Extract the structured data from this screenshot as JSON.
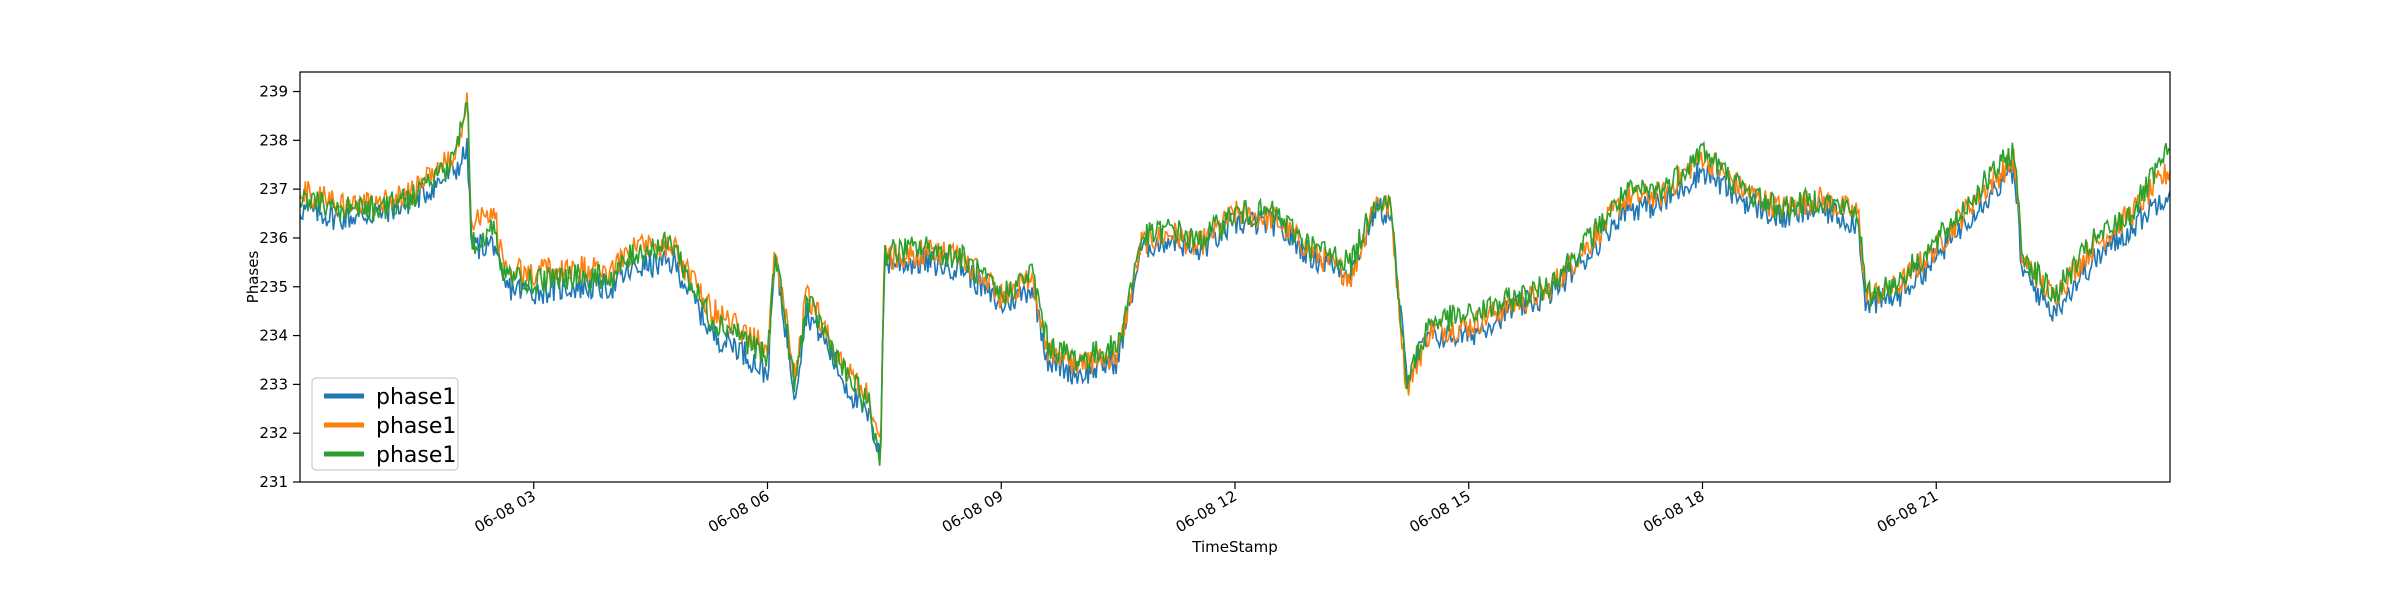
{
  "chart_data": {
    "type": "line",
    "xlabel": "TimeStamp",
    "ylabel": "Phases",
    "ylim": [
      231,
      239.4
    ],
    "yticks": [
      231,
      232,
      233,
      234,
      235,
      236,
      237,
      238,
      239
    ],
    "xlim_hours": [
      0,
      24
    ],
    "xticks": [
      {
        "hour": 3,
        "label": "06-08 03"
      },
      {
        "hour": 6,
        "label": "06-08 06"
      },
      {
        "hour": 9,
        "label": "06-08 09"
      },
      {
        "hour": 12,
        "label": "06-08 12"
      },
      {
        "hour": 15,
        "label": "06-08 15"
      },
      {
        "hour": 18,
        "label": "06-08 18"
      },
      {
        "hour": 21,
        "label": "06-08 21"
      }
    ],
    "grid": false,
    "legend_position": "lower-left",
    "series": [
      {
        "name": "phase1",
        "color": "#1f77b4",
        "points": [
          [
            0,
            236.6
          ],
          [
            0.5,
            236.4
          ],
          [
            1.0,
            236.5
          ],
          [
            1.5,
            236.8
          ],
          [
            2.0,
            237.4
          ],
          [
            2.15,
            237.8
          ],
          [
            2.2,
            235.8
          ],
          [
            2.5,
            235.9
          ],
          [
            2.6,
            235.0
          ],
          [
            3.0,
            234.9
          ],
          [
            3.5,
            235.0
          ],
          [
            4.0,
            235.0
          ],
          [
            4.3,
            235.4
          ],
          [
            4.8,
            235.5
          ],
          [
            5.0,
            234.9
          ],
          [
            5.3,
            234.0
          ],
          [
            5.6,
            233.8
          ],
          [
            6.0,
            233.2
          ],
          [
            6.1,
            235.6
          ],
          [
            6.35,
            232.8
          ],
          [
            6.5,
            234.5
          ],
          [
            6.7,
            234.0
          ],
          [
            7.0,
            233.0
          ],
          [
            7.3,
            232.3
          ],
          [
            7.45,
            231.6
          ],
          [
            7.5,
            235.5
          ],
          [
            8.0,
            235.5
          ],
          [
            8.5,
            235.4
          ],
          [
            9.0,
            234.6
          ],
          [
            9.4,
            235.0
          ],
          [
            9.6,
            233.5
          ],
          [
            10.0,
            233.2
          ],
          [
            10.5,
            233.5
          ],
          [
            10.8,
            235.8
          ],
          [
            11.2,
            236.0
          ],
          [
            11.5,
            235.7
          ],
          [
            12.0,
            236.3
          ],
          [
            12.5,
            236.3
          ],
          [
            13.0,
            235.6
          ],
          [
            13.5,
            235.3
          ],
          [
            13.8,
            236.6
          ],
          [
            14.0,
            236.5
          ],
          [
            14.2,
            233.2
          ],
          [
            14.5,
            234.0
          ],
          [
            15.0,
            234.0
          ],
          [
            15.5,
            234.5
          ],
          [
            16.0,
            234.8
          ],
          [
            16.5,
            235.6
          ],
          [
            17.0,
            236.6
          ],
          [
            17.5,
            236.7
          ],
          [
            18.0,
            237.4
          ],
          [
            18.5,
            236.8
          ],
          [
            19.0,
            236.4
          ],
          [
            19.5,
            236.6
          ],
          [
            20.0,
            236.3
          ],
          [
            20.1,
            234.6
          ],
          [
            20.5,
            234.8
          ],
          [
            21.0,
            235.6
          ],
          [
            21.5,
            236.6
          ],
          [
            22.0,
            237.4
          ],
          [
            22.1,
            235.3
          ],
          [
            22.5,
            234.5
          ],
          [
            23.0,
            235.5
          ],
          [
            23.5,
            236.2
          ],
          [
            24.0,
            237.0
          ]
        ]
      },
      {
        "name": "phase1",
        "color": "#ff7f0e",
        "points": [
          [
            0,
            237.0
          ],
          [
            0.5,
            236.7
          ],
          [
            1.0,
            236.7
          ],
          [
            1.5,
            237.0
          ],
          [
            2.0,
            237.7
          ],
          [
            2.15,
            238.8
          ],
          [
            2.2,
            236.3
          ],
          [
            2.5,
            236.6
          ],
          [
            2.6,
            235.4
          ],
          [
            3.0,
            235.3
          ],
          [
            3.5,
            235.4
          ],
          [
            4.0,
            235.3
          ],
          [
            4.3,
            235.8
          ],
          [
            4.8,
            235.8
          ],
          [
            5.0,
            235.2
          ],
          [
            5.3,
            234.5
          ],
          [
            5.6,
            234.2
          ],
          [
            6.0,
            233.7
          ],
          [
            6.1,
            235.8
          ],
          [
            6.35,
            233.1
          ],
          [
            6.5,
            234.8
          ],
          [
            6.7,
            234.3
          ],
          [
            7.0,
            233.3
          ],
          [
            7.3,
            232.7
          ],
          [
            7.45,
            231.7
          ],
          [
            7.5,
            235.6
          ],
          [
            8.0,
            235.7
          ],
          [
            8.5,
            235.6
          ],
          [
            9.0,
            234.8
          ],
          [
            9.4,
            235.2
          ],
          [
            9.6,
            233.7
          ],
          [
            10.0,
            233.4
          ],
          [
            10.5,
            233.6
          ],
          [
            10.8,
            235.9
          ],
          [
            11.2,
            236.1
          ],
          [
            11.5,
            235.8
          ],
          [
            12.0,
            236.5
          ],
          [
            12.5,
            236.4
          ],
          [
            13.0,
            235.7
          ],
          [
            13.5,
            235.2
          ],
          [
            13.8,
            236.8
          ],
          [
            14.0,
            236.6
          ],
          [
            14.2,
            232.9
          ],
          [
            14.5,
            234.1
          ],
          [
            15.0,
            234.2
          ],
          [
            15.5,
            234.6
          ],
          [
            16.0,
            234.9
          ],
          [
            16.5,
            235.8
          ],
          [
            17.0,
            236.8
          ],
          [
            17.5,
            236.9
          ],
          [
            18.0,
            237.7
          ],
          [
            18.5,
            237.0
          ],
          [
            19.0,
            236.6
          ],
          [
            19.5,
            236.8
          ],
          [
            20.0,
            236.5
          ],
          [
            20.1,
            234.8
          ],
          [
            20.5,
            235.0
          ],
          [
            21.0,
            235.8
          ],
          [
            21.5,
            236.8
          ],
          [
            22.0,
            237.6
          ],
          [
            22.1,
            235.6
          ],
          [
            22.5,
            234.8
          ],
          [
            23.0,
            235.8
          ],
          [
            23.5,
            236.5
          ],
          [
            24.0,
            237.4
          ]
        ]
      },
      {
        "name": "phase1",
        "color": "#2ca02c",
        "points": [
          [
            0,
            236.8
          ],
          [
            0.5,
            236.6
          ],
          [
            1.0,
            236.6
          ],
          [
            1.5,
            236.9
          ],
          [
            2.0,
            237.6
          ],
          [
            2.15,
            239.0
          ],
          [
            2.2,
            235.9
          ],
          [
            2.5,
            236.2
          ],
          [
            2.6,
            235.2
          ],
          [
            3.0,
            235.1
          ],
          [
            3.5,
            235.2
          ],
          [
            4.0,
            235.2
          ],
          [
            4.3,
            235.7
          ],
          [
            4.8,
            235.9
          ],
          [
            5.0,
            235.1
          ],
          [
            5.3,
            234.3
          ],
          [
            5.6,
            234.1
          ],
          [
            6.0,
            233.5
          ],
          [
            6.1,
            235.8
          ],
          [
            6.35,
            232.9
          ],
          [
            6.5,
            234.7
          ],
          [
            6.7,
            234.2
          ],
          [
            7.0,
            233.2
          ],
          [
            7.3,
            232.6
          ],
          [
            7.45,
            231.4
          ],
          [
            7.5,
            235.7
          ],
          [
            8.0,
            235.8
          ],
          [
            8.5,
            235.6
          ],
          [
            9.0,
            234.8
          ],
          [
            9.4,
            235.3
          ],
          [
            9.6,
            233.8
          ],
          [
            10.0,
            233.5
          ],
          [
            10.5,
            233.8
          ],
          [
            10.8,
            236.0
          ],
          [
            11.2,
            236.2
          ],
          [
            11.5,
            235.9
          ],
          [
            12.0,
            236.5
          ],
          [
            12.5,
            236.5
          ],
          [
            13.0,
            235.8
          ],
          [
            13.5,
            235.5
          ],
          [
            13.8,
            236.8
          ],
          [
            14.0,
            236.7
          ],
          [
            14.2,
            233.0
          ],
          [
            14.5,
            234.3
          ],
          [
            15.0,
            234.4
          ],
          [
            15.5,
            234.7
          ],
          [
            16.0,
            235.0
          ],
          [
            16.5,
            235.9
          ],
          [
            17.0,
            236.9
          ],
          [
            17.5,
            237.0
          ],
          [
            18.0,
            237.8
          ],
          [
            18.5,
            237.0
          ],
          [
            19.0,
            236.6
          ],
          [
            19.5,
            236.8
          ],
          [
            20.0,
            236.5
          ],
          [
            20.1,
            234.8
          ],
          [
            20.5,
            235.1
          ],
          [
            21.0,
            235.9
          ],
          [
            21.5,
            236.9
          ],
          [
            22.0,
            237.8
          ],
          [
            22.1,
            235.7
          ],
          [
            22.5,
            234.8
          ],
          [
            23.0,
            235.9
          ],
          [
            23.5,
            236.5
          ],
          [
            24.0,
            237.8
          ]
        ]
      }
    ]
  }
}
